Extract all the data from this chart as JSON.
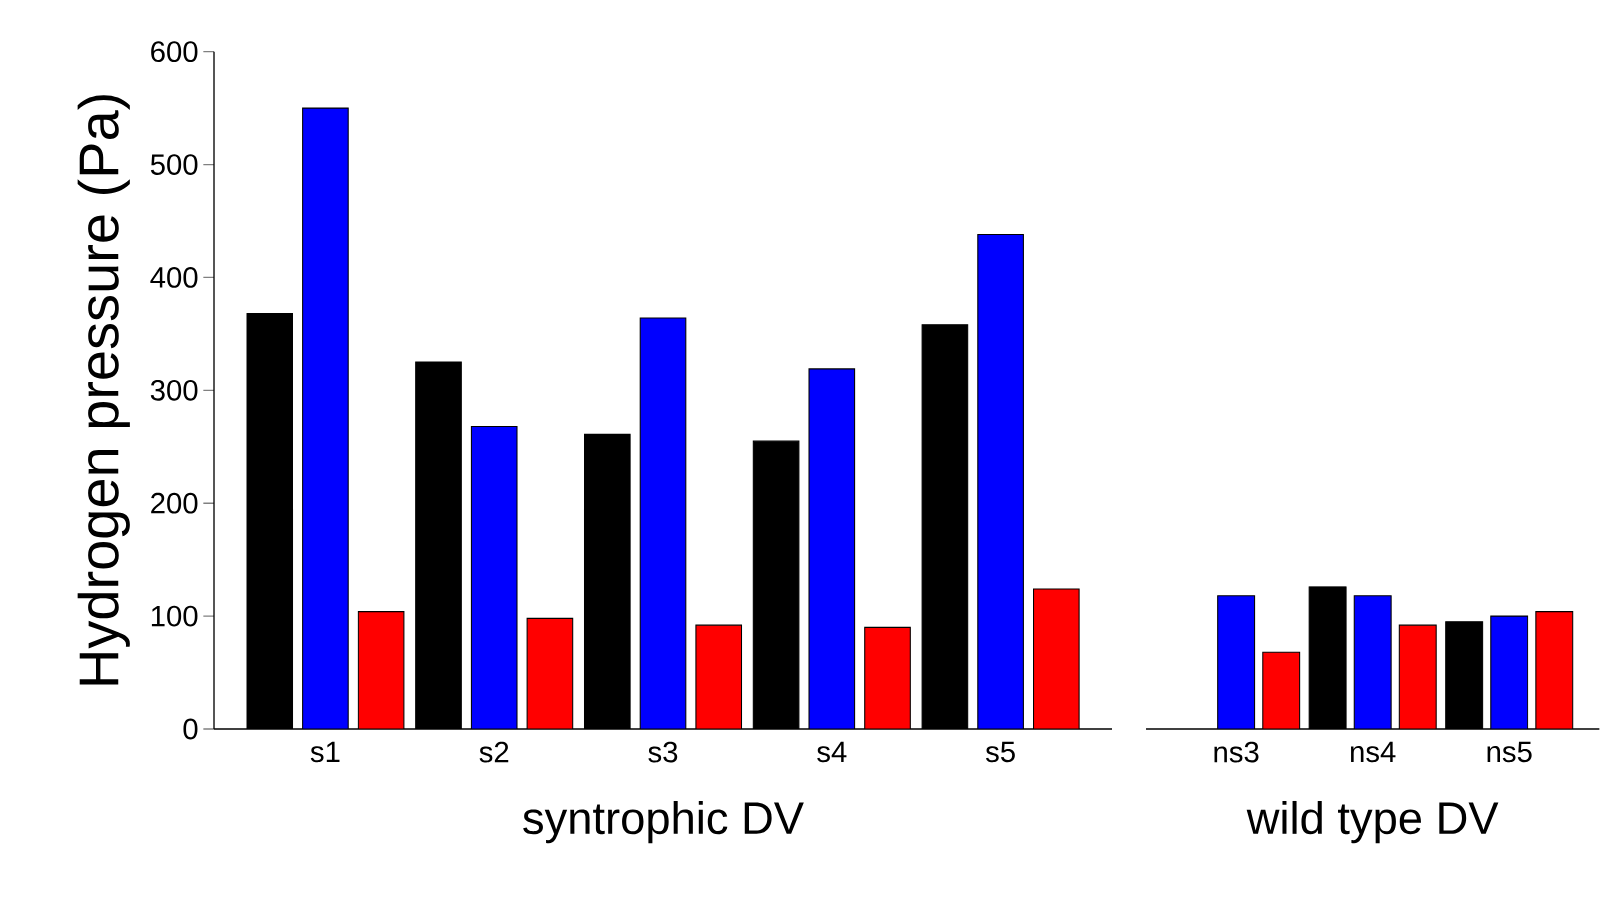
{
  "chart_data": [
    {
      "type": "bar",
      "xlabel": "syntrophic DV",
      "ylabel": "Hydrogen pressure (Pa)",
      "categories": [
        "s1",
        "s2",
        "s3",
        "s4",
        "s5"
      ],
      "series": [
        {
          "color": "#000000",
          "values": [
            368,
            325,
            261,
            255,
            358
          ]
        },
        {
          "color": "#0000ff",
          "values": [
            550,
            268,
            364,
            319,
            438
          ]
        },
        {
          "color": "#ff0000",
          "values": [
            104,
            98,
            92,
            90,
            124
          ]
        }
      ],
      "ylim": [
        0,
        600
      ],
      "yticks": [
        0,
        100,
        200,
        300,
        400,
        500,
        600
      ]
    },
    {
      "type": "bar",
      "xlabel": "wild type DV",
      "categories": [
        "ns3",
        "ns4",
        "ns5"
      ],
      "series": [
        {
          "color": "#000000",
          "values": [
            null,
            126,
            95
          ]
        },
        {
          "color": "#0000ff",
          "values": [
            118,
            118,
            100
          ]
        },
        {
          "color": "#ff0000",
          "values": [
            68,
            92,
            104
          ]
        }
      ],
      "ylim": [
        0,
        600
      ],
      "yticks": [
        0,
        100,
        200,
        300,
        400,
        500,
        600
      ],
      "tick_labels": "x"
    }
  ]
}
